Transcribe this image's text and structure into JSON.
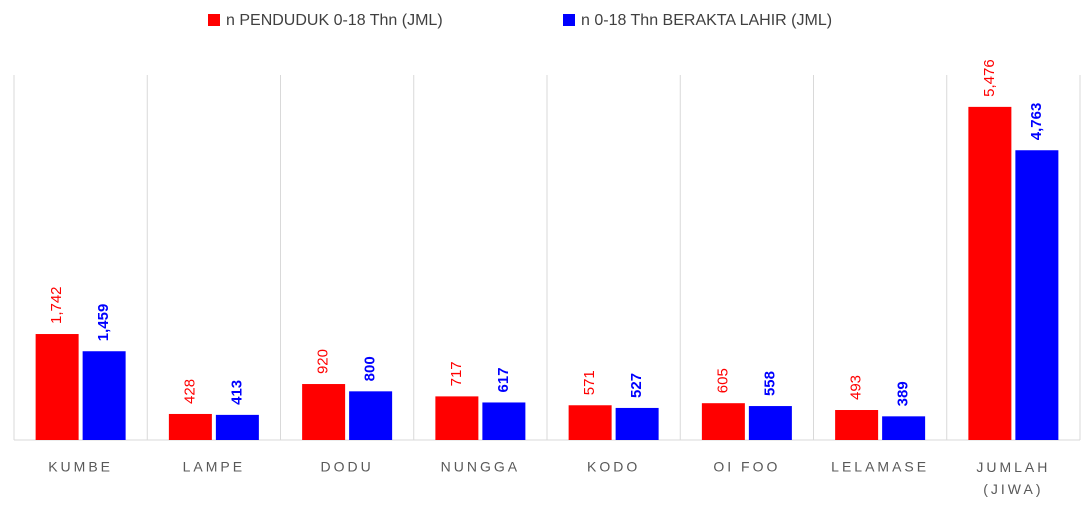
{
  "chart_data": {
    "type": "bar",
    "categories": [
      "KUMBE",
      "LAMPE",
      "DODU",
      "NUNGGA",
      "KODO",
      "OI FOO",
      "LELAMASE",
      "JUMLAH (JIWA)"
    ],
    "series": [
      {
        "name": "n PENDUDUK 0-18 Thn (JML)",
        "color": "#ff0000",
        "values": [
          1742,
          428,
          920,
          717,
          571,
          605,
          493,
          5476
        ],
        "value_labels": [
          "1,742",
          "428",
          "920",
          "717",
          "571",
          "605",
          "493",
          "5,476"
        ]
      },
      {
        "name": "n 0-18 Thn BERAKTA LAHIR (JML)",
        "color": "#0000ff",
        "values": [
          1459,
          413,
          800,
          617,
          527,
          558,
          389,
          4763
        ],
        "value_labels": [
          "1,459",
          "413",
          "800",
          "617",
          "527",
          "558",
          "389",
          "4,763"
        ]
      }
    ],
    "ylim": [
      0,
      6000
    ],
    "legend": "top"
  }
}
